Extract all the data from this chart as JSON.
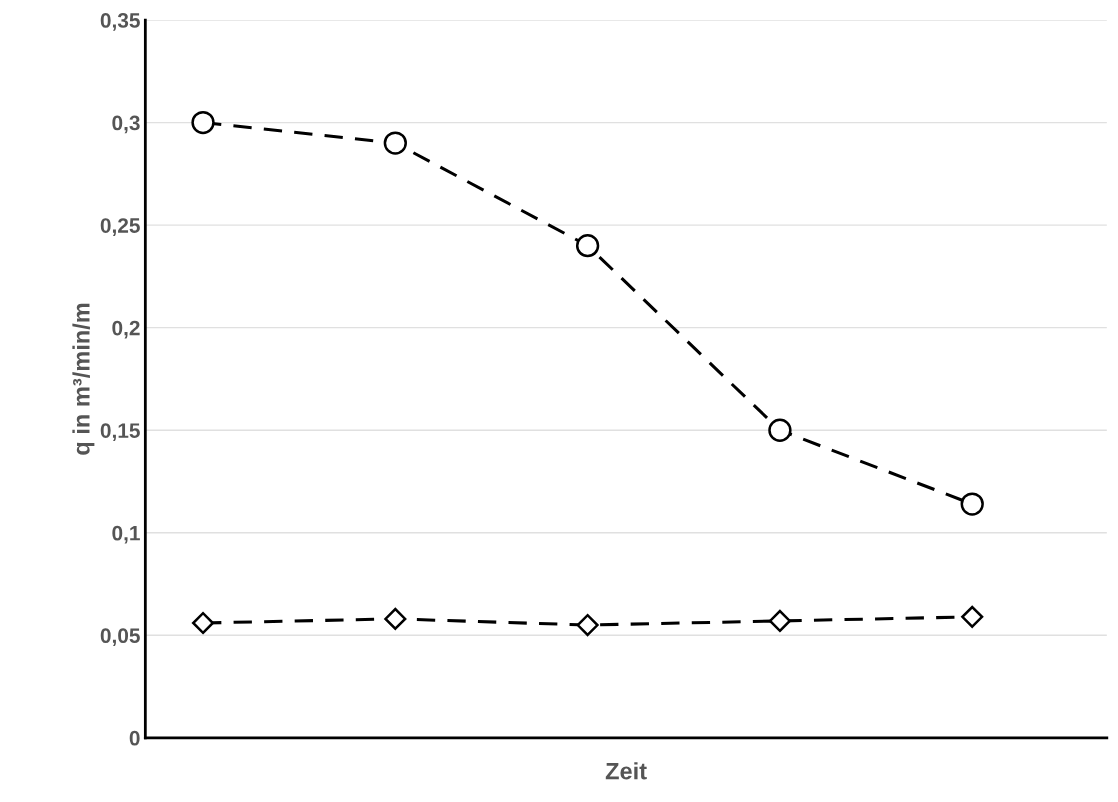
{
  "chart_data": {
    "type": "line",
    "xlabel": "Zeit",
    "ylabel": "q in m³/min/m",
    "categories": [
      null,
      null,
      null,
      null,
      null
    ],
    "series": [
      {
        "color": "#000000",
        "marker": "circle",
        "line_style": "dashed",
        "values": [
          0.3,
          0.29,
          0.24,
          0.15,
          0.114
        ]
      },
      {
        "color": "#000000",
        "marker": "diamond",
        "line_style": "dashed",
        "values": [
          0.056,
          0.058,
          0.055,
          0.057,
          0.059
        ]
      }
    ],
    "ylim": [
      0,
      0.35
    ],
    "yticks": [
      0,
      {
        "value": 0.05,
        "label": "0,05"
      },
      {
        "value": 0.1,
        "label": "0,1"
      },
      {
        "value": 0.15,
        "label": "0,15"
      },
      {
        "value": 0.2,
        "label": "0,2"
      },
      {
        "value": 0.25,
        "label": "0,25"
      },
      {
        "value": 0.3,
        "label": "0,3"
      },
      {
        "value": 0.35,
        "label": "0,35"
      }
    ],
    "grid": "y"
  }
}
